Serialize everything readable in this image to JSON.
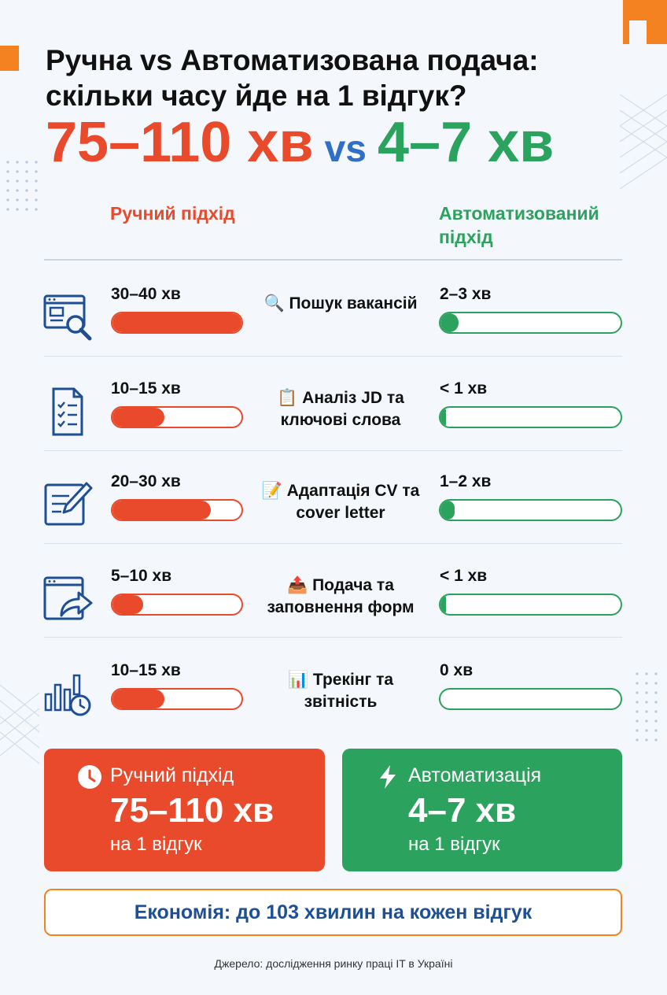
{
  "title": "Ручна vs Автоматизована подача: скільки часу йде на 1 відгук?",
  "headline": {
    "manual": "75–110 хв",
    "vs": "vs",
    "auto": "4–7 хв"
  },
  "columns": {
    "manual": "Ручний підхід",
    "auto": "Автоматизований підхід"
  },
  "rows": [
    {
      "icon": "search-window-icon",
      "task": "🔍 Пошук вакансій",
      "manual_time": "30–40 хв",
      "auto_time": "2–3 хв",
      "manual_fill": 1.0,
      "auto_fill": 0.1
    },
    {
      "icon": "checklist-icon",
      "task": "📋 Аналіз JD та ключові слова",
      "manual_time": "10–15 хв",
      "auto_time": "< 1 хв",
      "manual_fill": 0.4,
      "auto_fill": 0.03
    },
    {
      "icon": "edit-document-icon",
      "task": "📝 Адаптація CV та cover letter",
      "manual_time": "20–30 хв",
      "auto_time": "1–2 хв",
      "manual_fill": 0.76,
      "auto_fill": 0.08
    },
    {
      "icon": "share-window-icon",
      "task": "📤 Подача та заповнення форм",
      "manual_time": "5–10 хв",
      "auto_time": "< 1 хв",
      "manual_fill": 0.24,
      "auto_fill": 0.03
    },
    {
      "icon": "chart-clock-icon",
      "task": "📊 Трекінг та звітність",
      "manual_time": "10–15 хв",
      "auto_time": "0 хв",
      "manual_fill": 0.4,
      "auto_fill": 0
    }
  ],
  "summary": {
    "manual": {
      "label": "Ручний підхід",
      "value": "75–110 хв",
      "sub": "на 1 відгук"
    },
    "auto": {
      "label": "Автоматизація",
      "value": "4–7 хв",
      "sub": "на 1 відгук"
    }
  },
  "saving": "Економія: до 103 хвилин на кожен відгук",
  "source": "Джерело: дослідження ринку праці IT в Україні",
  "colors": {
    "manual": "#e84a2b",
    "auto": "#2ca25f",
    "accent": "#f58220",
    "vs": "#2f6fc7"
  }
}
